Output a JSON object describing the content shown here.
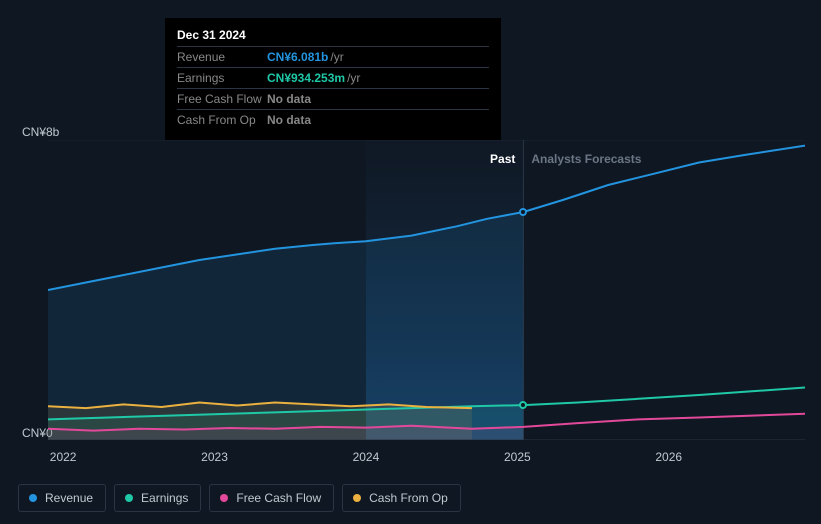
{
  "tooltip": {
    "date": "Dec 31 2024",
    "rows": [
      {
        "label": "Revenue",
        "value": "CN¥6.081b",
        "suffix": "/yr",
        "color": "#2394df"
      },
      {
        "label": "Earnings",
        "value": "CN¥934.253m",
        "suffix": "/yr",
        "color": "#1fc8a7"
      },
      {
        "label": "Free Cash Flow",
        "value": "No data",
        "suffix": "",
        "color": "#888"
      },
      {
        "label": "Cash From Op",
        "value": "No data",
        "suffix": "",
        "color": "#888"
      }
    ]
  },
  "chart": {
    "y_top_label": "CN¥8b",
    "y_bottom_label": "CN¥0",
    "x_labels": [
      "2022",
      "2023",
      "2024",
      "2025",
      "2026"
    ],
    "x_positions_pct": [
      2,
      22,
      42,
      62,
      82
    ],
    "past_label": "Past",
    "forecast_label": "Analysts Forecasts",
    "divider_pct": 62.8,
    "beam_left_pct": 42,
    "beam_right_pct": 62.8,
    "ymax": 8,
    "background": "#0f1722",
    "grid_color": "#1a2432",
    "series": {
      "revenue": {
        "color": "#2394df",
        "marker_x_pct": 62.8,
        "marker_val": 6.08,
        "points": [
          [
            0,
            4.0
          ],
          [
            5,
            4.2
          ],
          [
            10,
            4.4
          ],
          [
            15,
            4.6
          ],
          [
            20,
            4.8
          ],
          [
            25,
            4.95
          ],
          [
            30,
            5.1
          ],
          [
            35,
            5.2
          ],
          [
            38,
            5.25
          ],
          [
            42,
            5.3
          ],
          [
            48,
            5.45
          ],
          [
            54,
            5.7
          ],
          [
            58,
            5.9
          ],
          [
            62.8,
            6.08
          ],
          [
            68,
            6.4
          ],
          [
            74,
            6.8
          ],
          [
            80,
            7.1
          ],
          [
            86,
            7.4
          ],
          [
            92,
            7.6
          ],
          [
            100,
            7.85
          ]
        ]
      },
      "earnings": {
        "color": "#1fc8a7",
        "marker_x_pct": 62.8,
        "marker_val": 0.93,
        "points": [
          [
            0,
            0.55
          ],
          [
            8,
            0.6
          ],
          [
            16,
            0.65
          ],
          [
            24,
            0.7
          ],
          [
            32,
            0.75
          ],
          [
            40,
            0.8
          ],
          [
            48,
            0.85
          ],
          [
            56,
            0.9
          ],
          [
            62.8,
            0.93
          ],
          [
            70,
            1.0
          ],
          [
            78,
            1.1
          ],
          [
            86,
            1.2
          ],
          [
            93,
            1.3
          ],
          [
            100,
            1.4
          ]
        ]
      },
      "fcf": {
        "color": "#e2499a",
        "points": [
          [
            0,
            0.3
          ],
          [
            6,
            0.25
          ],
          [
            12,
            0.3
          ],
          [
            18,
            0.28
          ],
          [
            24,
            0.32
          ],
          [
            30,
            0.3
          ],
          [
            36,
            0.35
          ],
          [
            42,
            0.33
          ],
          [
            48,
            0.38
          ],
          [
            56,
            0.3
          ],
          [
            62.8,
            0.35
          ],
          [
            70,
            0.45
          ],
          [
            78,
            0.55
          ],
          [
            86,
            0.6
          ],
          [
            93,
            0.65
          ],
          [
            100,
            0.7
          ]
        ]
      },
      "cfo": {
        "color": "#eab040",
        "points": [
          [
            0,
            0.9
          ],
          [
            5,
            0.85
          ],
          [
            10,
            0.95
          ],
          [
            15,
            0.88
          ],
          [
            20,
            1.0
          ],
          [
            25,
            0.92
          ],
          [
            30,
            1.0
          ],
          [
            35,
            0.95
          ],
          [
            40,
            0.9
          ],
          [
            45,
            0.95
          ],
          [
            50,
            0.88
          ],
          [
            56,
            0.85
          ]
        ]
      }
    }
  },
  "legend": [
    {
      "label": "Revenue",
      "color": "#2394df"
    },
    {
      "label": "Earnings",
      "color": "#1fc8a7"
    },
    {
      "label": "Free Cash Flow",
      "color": "#e2499a"
    },
    {
      "label": "Cash From Op",
      "color": "#eab040"
    }
  ]
}
